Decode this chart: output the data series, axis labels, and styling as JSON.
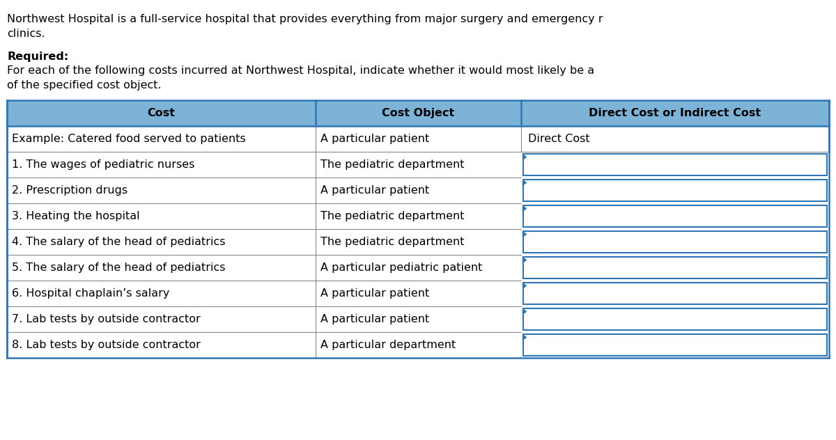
{
  "intro_line1": "Northwest Hospital is a full-service hospital that provides everything from major surgery and emergency r",
  "intro_line2": "clinics.",
  "required_label": "Required:",
  "required_text1": "For each of the following costs incurred at Northwest Hospital, indicate whether it would most likely be a",
  "required_text2": "of the specified cost object.",
  "header": [
    "Cost",
    "Cost Object",
    "Direct Cost or Indirect Cost"
  ],
  "example_row": [
    "Example: Catered food served to patients",
    "A particular patient",
    "Direct Cost"
  ],
  "rows": [
    [
      "1. The wages of pediatric nurses",
      "The pediatric department",
      ""
    ],
    [
      "2. Prescription drugs",
      "A particular patient",
      ""
    ],
    [
      "3. Heating the hospital",
      "The pediatric department",
      ""
    ],
    [
      "4. The salary of the head of pediatrics",
      "The pediatric department",
      ""
    ],
    [
      "5. The salary of the head of pediatrics",
      "A particular pediatric patient",
      ""
    ],
    [
      "6. Hospital chaplain’s salary",
      "A particular patient",
      ""
    ],
    [
      "7. Lab tests by outside contractor",
      "A particular patient",
      ""
    ],
    [
      "8. Lab tests by outside contractor",
      "A particular department",
      ""
    ]
  ],
  "header_bg": "#7EB3D8",
  "header_text_color": "#000000",
  "answer_box_border": "#2E75B6",
  "answer_box_bg": "#FFFFFF",
  "answer_arrow_color": "#2E75B6",
  "outer_border_color": "#2E75B6",
  "inner_line_color": "#888888",
  "font_size": 11.5
}
